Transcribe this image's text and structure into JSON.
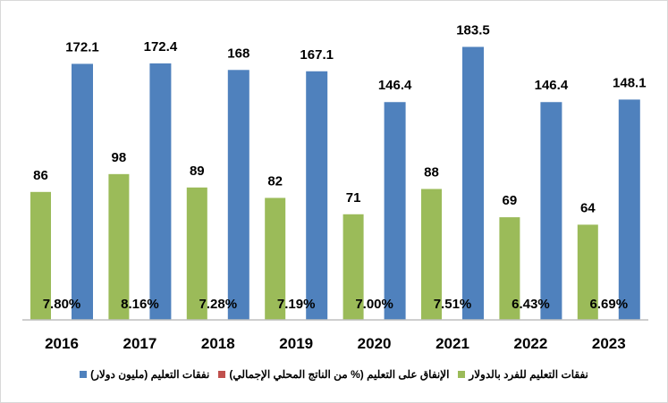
{
  "chart_data": {
    "type": "bar",
    "title": "",
    "xlabel": "",
    "ylabel": "",
    "categories": [
      "2016",
      "2017",
      "2018",
      "2019",
      "2020",
      "2021",
      "2022",
      "2023"
    ],
    "series": [
      {
        "name": "نفقات التعليم للفرد بالدولار",
        "color": "#9BBB59",
        "values": [
          86,
          98,
          89,
          82,
          71,
          88,
          69,
          64
        ],
        "labels": [
          "86",
          "98",
          "89",
          "82",
          "71",
          "88",
          "69",
          "64"
        ]
      },
      {
        "name": "الإنفاق على التعليم (% من الناتج المحلي الإجمالي)",
        "color": "#C0504D",
        "values": [
          7.8,
          8.16,
          7.28,
          7.19,
          7.0,
          7.51,
          6.43,
          6.69
        ],
        "labels": [
          "7.80%",
          "8.16%",
          "7.28%",
          "7.19%",
          "7.00%",
          "7.51%",
          "6.43%",
          "6.69%"
        ]
      },
      {
        "name": "نفقات التعليم (مليون دولار)",
        "color": "#4F81BD",
        "values": [
          172.1,
          172.4,
          168,
          167.1,
          146.4,
          183.5,
          146.4,
          148.1
        ],
        "labels": [
          "172.1",
          "172.4",
          "168",
          "167.1",
          "146.4",
          "183.5",
          "146.4",
          "148.1"
        ]
      }
    ],
    "ylim": [
      0,
      190
    ],
    "grid": false,
    "legend": "bottom"
  }
}
